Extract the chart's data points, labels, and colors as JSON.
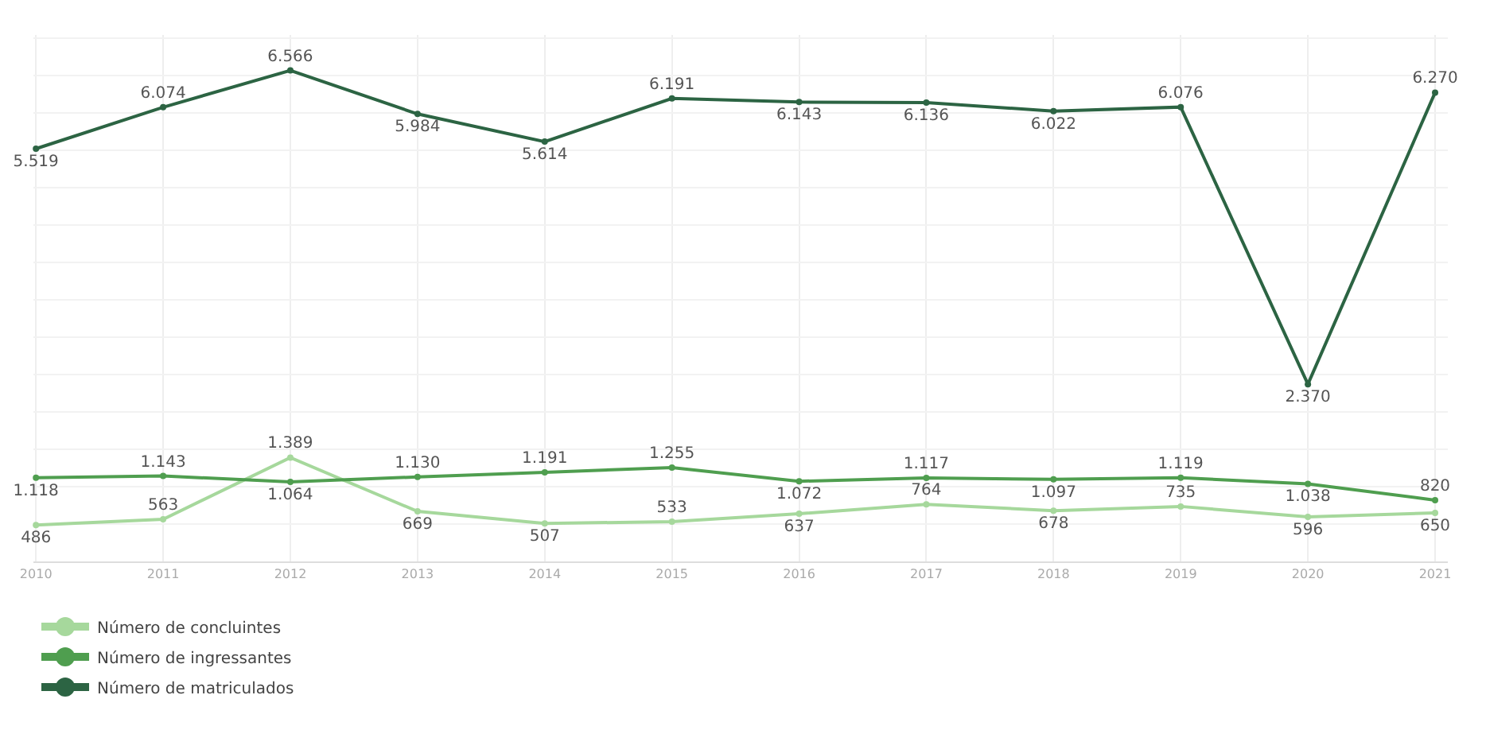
{
  "chart_data": {
    "type": "line",
    "categories": [
      "2010",
      "2011",
      "2012",
      "2013",
      "2014",
      "2015",
      "2016",
      "2017",
      "2018",
      "2019",
      "2020",
      "2021"
    ],
    "series": [
      {
        "name": "Número de concluintes",
        "color": "#a6d89c",
        "values": [
          486,
          563,
          1389,
          669,
          507,
          533,
          637,
          764,
          678,
          735,
          596,
          650
        ],
        "value_labels": [
          "486",
          "563",
          "1.389",
          "669",
          "507",
          "533",
          "637",
          "764",
          "678",
          "735",
          "596",
          "650"
        ]
      },
      {
        "name": "Número de ingressantes",
        "color": "#4f9e4f",
        "values": [
          1118,
          1143,
          1064,
          1130,
          1191,
          1255,
          1072,
          1117,
          1097,
          1119,
          1038,
          820
        ],
        "value_labels": [
          "1.118",
          "1.143",
          "1.064",
          "1.130",
          "1.191",
          "1.255",
          "1.072",
          "1.117",
          "1.097",
          "1.119",
          "1.038",
          "820"
        ]
      },
      {
        "name": "Número de matriculados",
        "color": "#2c6443",
        "values": [
          5519,
          6074,
          6566,
          5984,
          5614,
          6191,
          6143,
          6136,
          6022,
          6076,
          2370,
          6270
        ],
        "value_labels": [
          "5.519",
          "6.074",
          "6.566",
          "5.984",
          "5.614",
          "6.191",
          "6.143",
          "6.136",
          "6.022",
          "6.076",
          "2.370",
          "6.270"
        ]
      }
    ],
    "ylim": [
      0,
      7040
    ],
    "yticks": [
      {
        "value": 0,
        "label": null
      },
      {
        "value": 500,
        "label": null
      },
      {
        "value": 1000,
        "label": null
      },
      {
        "value": 1500,
        "label": null
      },
      {
        "value": 2000,
        "label": null
      },
      {
        "value": 2500,
        "label": null
      },
      {
        "value": 3000,
        "label": null
      },
      {
        "value": 3500,
        "label": null
      },
      {
        "value": 4000,
        "label": null
      },
      {
        "value": 4500,
        "label": null
      },
      {
        "value": 5000,
        "label": null
      },
      {
        "value": 5500,
        "label": null
      },
      {
        "value": 6000,
        "label": null
      },
      {
        "value": 6500,
        "label": null
      },
      {
        "value": 7000,
        "label": null
      }
    ],
    "tick_labels": "x",
    "grid": true,
    "legend": "bottom left",
    "marker": "circle",
    "line_style": "solid"
  }
}
